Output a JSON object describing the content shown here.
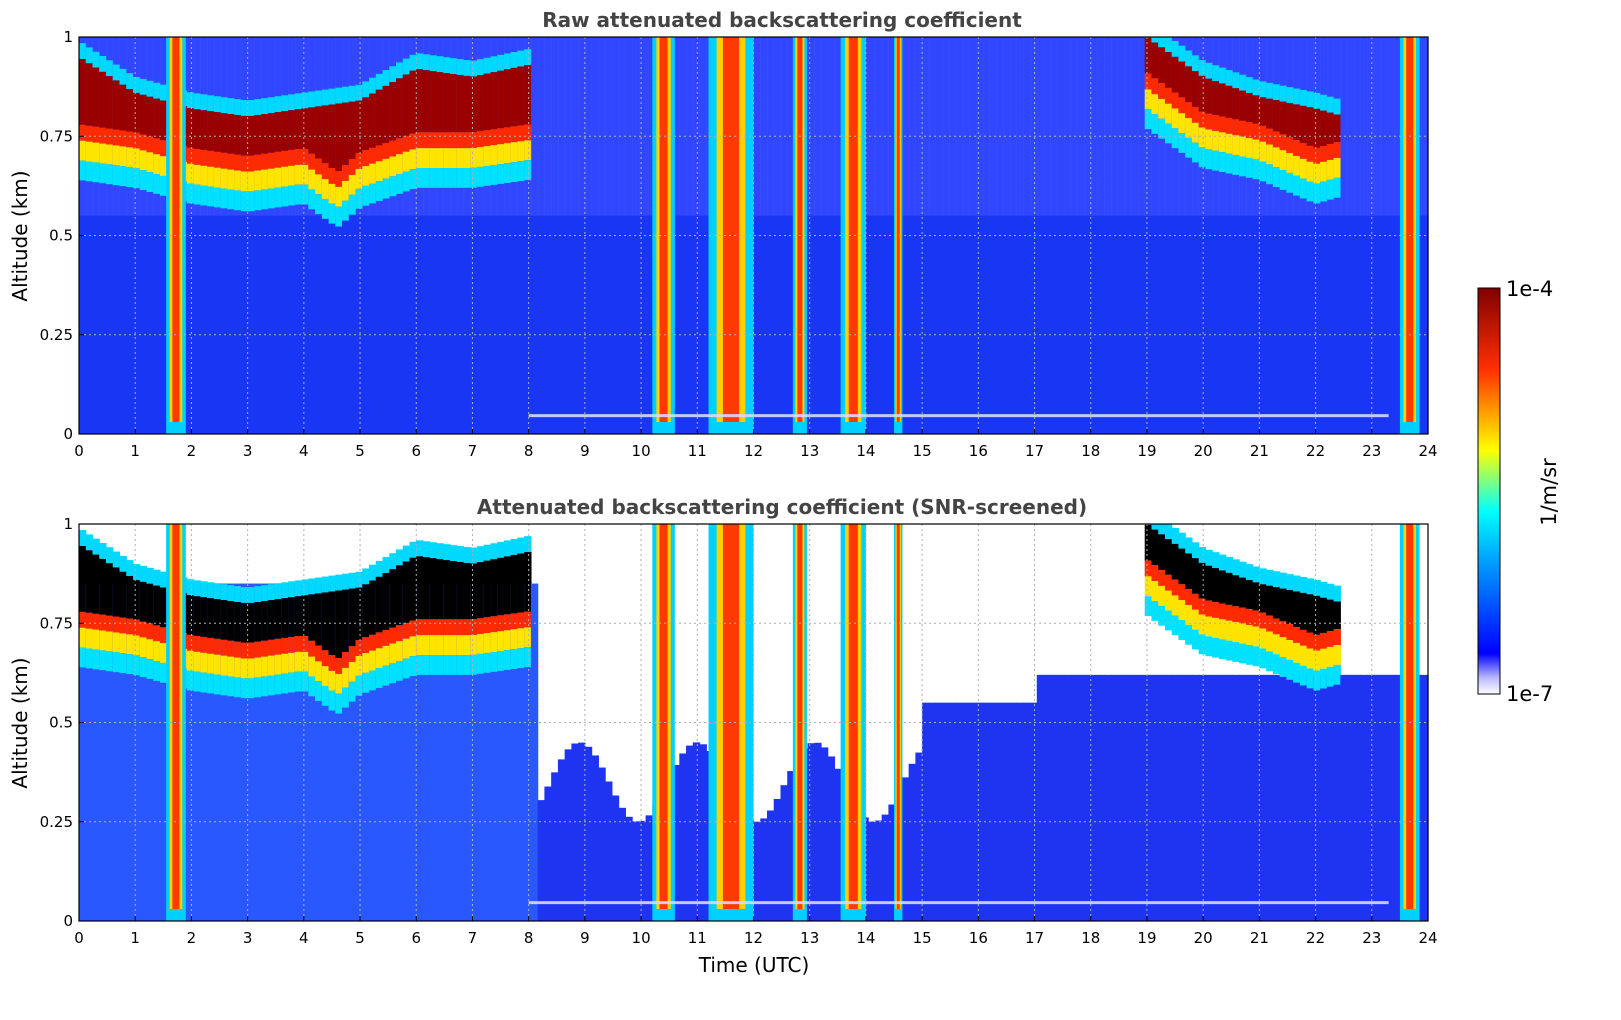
{
  "chart_data": [
    {
      "type": "heatmap",
      "title": "Raw attenuated backscattering coefficient",
      "xlabel": "",
      "ylabel": "Altitude (km)",
      "xlim": [
        0,
        24
      ],
      "ylim": [
        0,
        1
      ],
      "xticks": [
        "0",
        "1",
        "2",
        "3",
        "4",
        "5",
        "6",
        "7",
        "8",
        "9",
        "10",
        "11",
        "12",
        "13",
        "14",
        "15",
        "16",
        "17",
        "18",
        "19",
        "20",
        "21",
        "22",
        "23",
        "24"
      ],
      "yticks": [
        "0",
        "0.25",
        "0.5",
        "0.75",
        "1"
      ],
      "grid": true,
      "screened": false
    },
    {
      "type": "heatmap",
      "title": "Attenuated backscattering coefficient (SNR-screened)",
      "xlabel": "Time (UTC)",
      "ylabel": "Altitude (km)",
      "xlim": [
        0,
        24
      ],
      "ylim": [
        0,
        1
      ],
      "xticks": [
        "0",
        "1",
        "2",
        "3",
        "4",
        "5",
        "6",
        "7",
        "8",
        "9",
        "10",
        "11",
        "12",
        "13",
        "14",
        "15",
        "16",
        "17",
        "18",
        "19",
        "20",
        "21",
        "22",
        "23",
        "24"
      ],
      "yticks": [
        "0",
        "0.25",
        "0.5",
        "0.75",
        "1"
      ],
      "grid": true,
      "screened": true
    }
  ],
  "colorbar": {
    "label": "1/m/sr",
    "max_label": "1e-4",
    "min_label": "1e-7",
    "colormap": "jet",
    "scale": "log"
  },
  "cloud_layer": {
    "description_units": "altitude km vs time UTC",
    "base_km": [
      [
        0,
        0.72
      ],
      [
        1,
        0.7
      ],
      [
        2,
        0.66
      ],
      [
        3,
        0.64
      ],
      [
        4,
        0.66
      ],
      [
        4.6,
        0.6
      ],
      [
        5,
        0.65
      ],
      [
        6,
        0.7
      ],
      [
        7,
        0.7
      ],
      [
        8,
        0.72
      ],
      [
        19,
        0.85
      ],
      [
        20,
        0.75
      ],
      [
        21,
        0.72
      ],
      [
        22,
        0.66
      ],
      [
        22.5,
        0.68
      ]
    ],
    "top_km": [
      [
        0,
        0.95
      ],
      [
        1,
        0.86
      ],
      [
        2,
        0.82
      ],
      [
        3,
        0.8
      ],
      [
        4,
        0.82
      ],
      [
        5,
        0.84
      ],
      [
        6,
        0.92
      ],
      [
        7,
        0.9
      ],
      [
        8,
        0.93
      ],
      [
        19,
        1.0
      ],
      [
        20,
        0.9
      ],
      [
        21,
        0.85
      ],
      [
        22,
        0.82
      ],
      [
        22.5,
        0.8
      ]
    ]
  },
  "precip_bands_utc": [
    [
      1.55,
      1.9
    ],
    [
      10.2,
      10.6
    ],
    [
      11.2,
      12.0
    ],
    [
      12.7,
      12.95
    ],
    [
      13.55,
      14.0
    ],
    [
      14.5,
      14.65
    ],
    [
      23.5,
      23.85
    ]
  ]
}
